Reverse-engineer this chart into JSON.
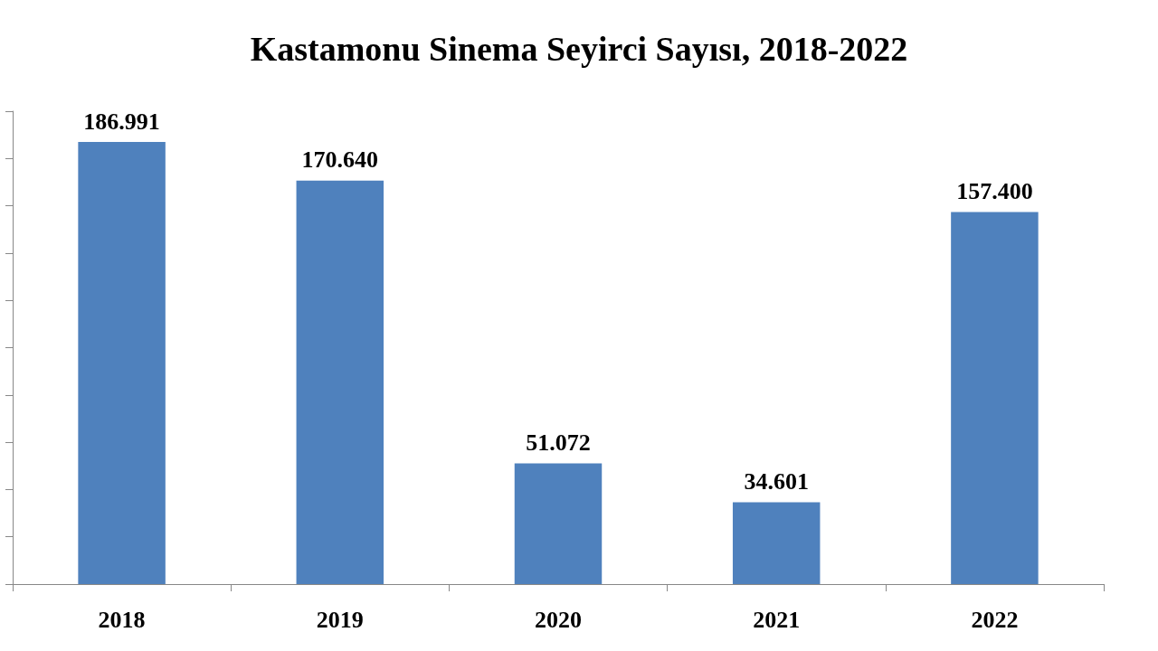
{
  "chart_data": {
    "type": "bar",
    "title": "Kastamonu Sinema Seyirci Sayısı, 2018-2022",
    "categories": [
      "2018",
      "2019",
      "2020",
      "2021",
      "2022"
    ],
    "values": [
      186991,
      170640,
      51072,
      34601,
      157400
    ],
    "value_labels": [
      "186.991",
      "170.640",
      "51.072",
      "34.601",
      "157.400"
    ],
    "color": "#4f81bd",
    "tick_labels": "x",
    "grid": false
  }
}
